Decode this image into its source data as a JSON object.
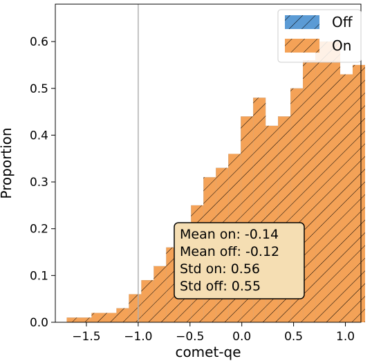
{
  "chart_data": {
    "type": "histogram",
    "xlabel": "comet-qe",
    "ylabel": "Proportion",
    "xlim": [
      -1.8,
      1.15
    ],
    "ylim": [
      0,
      0.68
    ],
    "xticks": [
      -1.5,
      -1.0,
      -0.5,
      0.0,
      0.5,
      1.0
    ],
    "xtick_labels": [
      "−1.5",
      "−1.0",
      "−0.5",
      "0.0",
      "0.5",
      "1.0"
    ],
    "yticks": [
      0.0,
      0.1,
      0.2,
      0.3,
      0.4,
      0.5,
      0.6
    ],
    "ytick_labels": [
      "0.0",
      "0.1",
      "0.2",
      "0.3",
      "0.4",
      "0.5",
      "0.6"
    ],
    "grid": false,
    "vline_x": -1.0,
    "legend": {
      "position": "top-right",
      "entries": [
        "Off",
        "On"
      ]
    },
    "series": [
      {
        "name": "Off",
        "color": "#5b9bd5",
        "bins": [
          [
            -1.69,
            -1.57,
            0.01
          ],
          [
            -1.57,
            -1.45,
            0.01
          ],
          [
            -1.45,
            -1.33,
            0.02
          ],
          [
            -1.33,
            -1.21,
            0.02
          ],
          [
            -1.21,
            -1.09,
            0.03
          ],
          [
            -1.09,
            -0.97,
            0.06
          ],
          [
            -0.97,
            -0.85,
            0.09
          ],
          [
            -0.85,
            -0.73,
            0.12
          ],
          [
            -0.73,
            -0.61,
            0.16
          ],
          [
            -0.61,
            -0.49,
            0.19
          ],
          [
            -0.49,
            -0.37,
            0.25
          ],
          [
            -0.37,
            -0.25,
            0.31
          ],
          [
            -0.25,
            -0.13,
            0.33
          ],
          [
            -0.13,
            -0.01,
            0.36
          ],
          [
            -0.01,
            0.11,
            0.44
          ],
          [
            0.11,
            0.23,
            0.48
          ],
          [
            0.23,
            0.35,
            0.42
          ],
          [
            0.35,
            0.47,
            0.44
          ],
          [
            0.47,
            0.59,
            0.5
          ],
          [
            0.59,
            0.71,
            0.56
          ],
          [
            0.71,
            0.83,
            0.6
          ],
          [
            0.83,
            0.95,
            0.6
          ],
          [
            0.95,
            1.07,
            0.53
          ],
          [
            1.07,
            1.19,
            0.55
          ]
        ]
      },
      {
        "name": "On",
        "color": "#f4a257",
        "bins": [
          [
            -1.69,
            -1.57,
            0.01
          ],
          [
            -1.57,
            -1.45,
            0.01
          ],
          [
            -1.45,
            -1.33,
            0.02
          ],
          [
            -1.33,
            -1.21,
            0.02
          ],
          [
            -1.21,
            -1.09,
            0.03
          ],
          [
            -1.09,
            -0.97,
            0.06
          ],
          [
            -0.97,
            -0.85,
            0.09
          ],
          [
            -0.85,
            -0.73,
            0.12
          ],
          [
            -0.73,
            -0.61,
            0.16
          ],
          [
            -0.61,
            -0.49,
            0.19
          ],
          [
            -0.49,
            -0.37,
            0.25
          ],
          [
            -0.37,
            -0.25,
            0.31
          ],
          [
            -0.25,
            -0.13,
            0.33
          ],
          [
            -0.13,
            -0.01,
            0.36
          ],
          [
            -0.01,
            0.11,
            0.44
          ],
          [
            0.11,
            0.23,
            0.48
          ],
          [
            0.23,
            0.35,
            0.42
          ],
          [
            0.35,
            0.47,
            0.44
          ],
          [
            0.47,
            0.59,
            0.5
          ],
          [
            0.59,
            0.71,
            0.56
          ],
          [
            0.71,
            0.83,
            0.6
          ],
          [
            0.83,
            0.95,
            0.6
          ],
          [
            0.95,
            1.07,
            0.53
          ],
          [
            1.07,
            1.19,
            0.55
          ]
        ]
      }
    ],
    "stats": {
      "lines": [
        "Mean on: -0.14",
        "Mean off: -0.12",
        "Std on: 0.56",
        "Std off: 0.55"
      ],
      "box_face": "#f5deb3"
    }
  }
}
